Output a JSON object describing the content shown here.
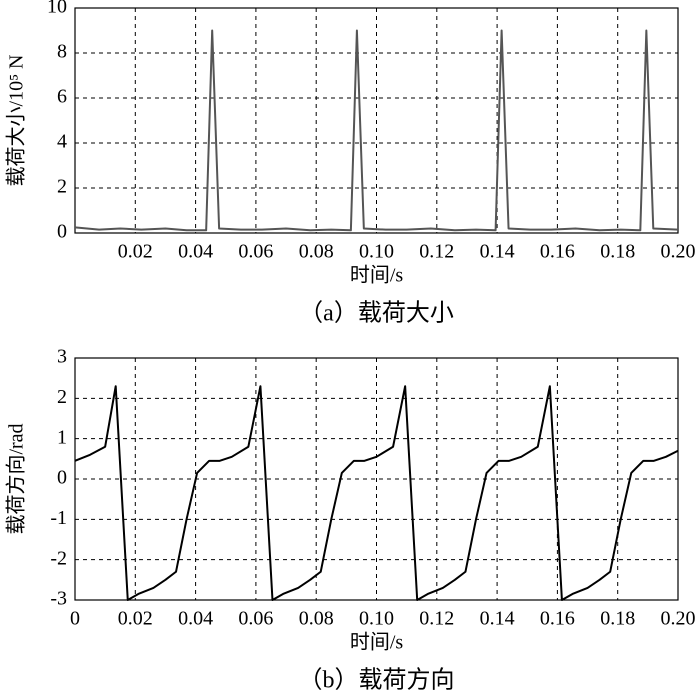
{
  "chart_data": [
    {
      "type": "line",
      "xlabel": "时间/s",
      "ylabel": "载荷大小/10⁵ N",
      "caption": "（a）载荷大小",
      "color": "#555555",
      "grid": true,
      "xlim": [
        0,
        0.2
      ],
      "ylim": [
        0,
        10
      ],
      "xticks": [
        0.02,
        0.04,
        0.06,
        0.08,
        {
          "value": 0.1,
          "label": "0.10"
        },
        0.12,
        0.14,
        0.16,
        0.18,
        {
          "value": 0.2,
          "label": "0.20"
        }
      ],
      "yticks": [
        0,
        2,
        4,
        6,
        8,
        10
      ],
      "x": [
        0,
        0.008,
        0.015,
        0.022,
        0.03,
        0.037,
        0.0435,
        0.0455,
        0.0478,
        0.055,
        0.062,
        0.07,
        0.078,
        0.085,
        0.0915,
        0.0935,
        0.0958,
        0.103,
        0.11,
        0.118,
        0.126,
        0.133,
        0.1395,
        0.1415,
        0.1438,
        0.151,
        0.158,
        0.166,
        0.174,
        0.181,
        0.1875,
        0.1895,
        0.1918,
        0.2
      ],
      "values": [
        0.25,
        0.15,
        0.2,
        0.15,
        0.2,
        0.12,
        0.12,
        9,
        0.2,
        0.15,
        0.15,
        0.2,
        0.12,
        0.15,
        0.12,
        9,
        0.2,
        0.15,
        0.15,
        0.2,
        0.12,
        0.15,
        0.12,
        9,
        0.2,
        0.15,
        0.15,
        0.2,
        0.12,
        0.15,
        0.12,
        9,
        0.2,
        0.15
      ]
    },
    {
      "type": "line",
      "xlabel": "时间/s",
      "ylabel": "载荷方向/rad",
      "caption": "（b）载荷方向",
      "color": "#000000",
      "grid": true,
      "xlim": [
        0,
        0.2
      ],
      "ylim": [
        -3,
        3
      ],
      "xticks": [
        0,
        0.02,
        0.04,
        0.06,
        0.08,
        {
          "value": 0.1,
          "label": "0.10"
        },
        0.12,
        0.14,
        0.16,
        0.18,
        {
          "value": 0.2,
          "label": "0.20"
        }
      ],
      "yticks": [
        -3,
        -2,
        -1,
        0,
        1,
        2,
        3
      ],
      "x": [
        0,
        0.005,
        0.01,
        0.0135,
        0.0175,
        0.021,
        0.026,
        0.03,
        0.0335,
        0.037,
        0.0405,
        0.0445,
        0.048,
        0.052,
        0.0575,
        0.0615,
        0.0655,
        0.069,
        0.074,
        0.078,
        0.0815,
        0.085,
        0.0885,
        0.0925,
        0.096,
        0.1,
        0.1055,
        0.1095,
        0.1135,
        0.117,
        0.122,
        0.126,
        0.1295,
        0.133,
        0.1365,
        0.1405,
        0.144,
        0.148,
        0.1535,
        0.1575,
        0.1615,
        0.165,
        0.17,
        0.174,
        0.1775,
        0.181,
        0.1845,
        0.1885,
        0.192,
        0.196,
        0.2
      ],
      "values": [
        0.45,
        0.6,
        0.8,
        2.3,
        -3,
        -2.85,
        -2.7,
        -2.5,
        -2.3,
        -1,
        0.15,
        0.45,
        0.45,
        0.55,
        0.8,
        2.3,
        -3,
        -2.85,
        -2.7,
        -2.5,
        -2.3,
        -1,
        0.15,
        0.45,
        0.45,
        0.55,
        0.8,
        2.3,
        -3,
        -2.85,
        -2.7,
        -2.5,
        -2.3,
        -1,
        0.15,
        0.45,
        0.45,
        0.55,
        0.8,
        2.3,
        -3,
        -2.85,
        -2.7,
        -2.5,
        -2.3,
        -1,
        0.15,
        0.45,
        0.45,
        0.55,
        0.7
      ]
    }
  ]
}
